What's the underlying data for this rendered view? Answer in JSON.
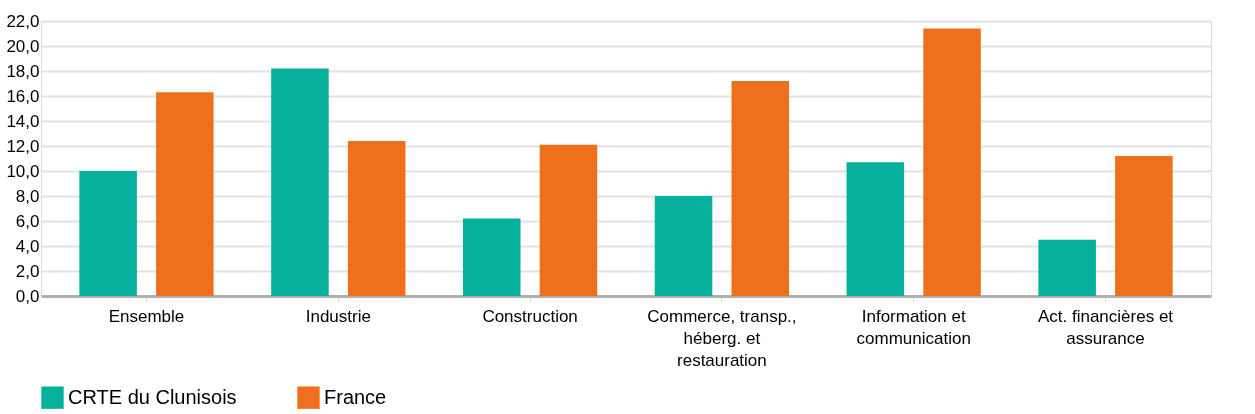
{
  "chart_data": {
    "type": "bar",
    "categories": [
      "Ensemble",
      "Industrie",
      "Construction",
      "Commerce, transp., héberg. et restauration",
      "Information et communication",
      "Act. financières et assurance"
    ],
    "series": [
      {
        "name": "CRTE du Clunisois",
        "color": "#06b09c",
        "values": [
          10.0,
          18.2,
          6.2,
          8.0,
          10.7,
          4.5
        ]
      },
      {
        "name": "France",
        "color": "#ee701d",
        "values": [
          16.3,
          12.4,
          12.1,
          17.2,
          21.4,
          11.2
        ]
      }
    ],
    "ylim": [
      0,
      22
    ],
    "yticks": [
      {
        "value": 0,
        "label": "0,0"
      },
      {
        "value": 2,
        "label": "2,0"
      },
      {
        "value": 4,
        "label": "4,0"
      },
      {
        "value": 6,
        "label": "6,0"
      },
      {
        "value": 8,
        "label": "8,0"
      },
      {
        "value": 10,
        "label": "10,0"
      },
      {
        "value": 12,
        "label": "12,0"
      },
      {
        "value": 14,
        "label": "14,0"
      },
      {
        "value": 16,
        "label": "16,0"
      },
      {
        "value": 18,
        "label": "18,0"
      },
      {
        "value": 20,
        "label": "20,0"
      },
      {
        "value": 22,
        "label": "22,0"
      }
    ],
    "grid": "y",
    "legend": "bottom"
  }
}
